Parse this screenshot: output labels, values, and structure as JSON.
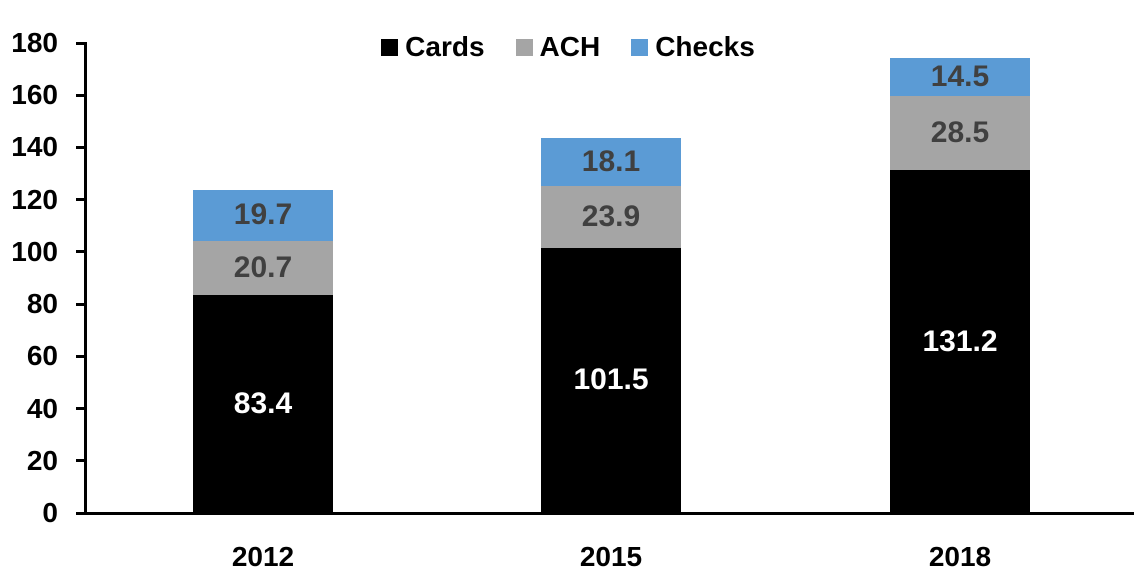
{
  "chart_data": {
    "type": "bar",
    "stacked": true,
    "categories": [
      "2012",
      "2015",
      "2018"
    ],
    "series": [
      {
        "name": "Cards",
        "color": "#000000",
        "label_color": "#FFFFFF",
        "values": [
          83.4,
          101.5,
          131.2
        ]
      },
      {
        "name": "ACH",
        "color": "#A5A5A5",
        "label_color": "#404040",
        "values": [
          20.7,
          23.9,
          28.5
        ]
      },
      {
        "name": "Checks",
        "color": "#5B9BD5",
        "label_color": "#404040",
        "values": [
          19.7,
          18.1,
          14.5
        ]
      }
    ],
    "ylim": [
      0,
      180
    ],
    "ytick_step": 20,
    "yticks": [
      0,
      20,
      40,
      60,
      80,
      100,
      120,
      140,
      160,
      180
    ],
    "grid": false,
    "legend_position": "top-center",
    "axis_color": "#000000"
  }
}
